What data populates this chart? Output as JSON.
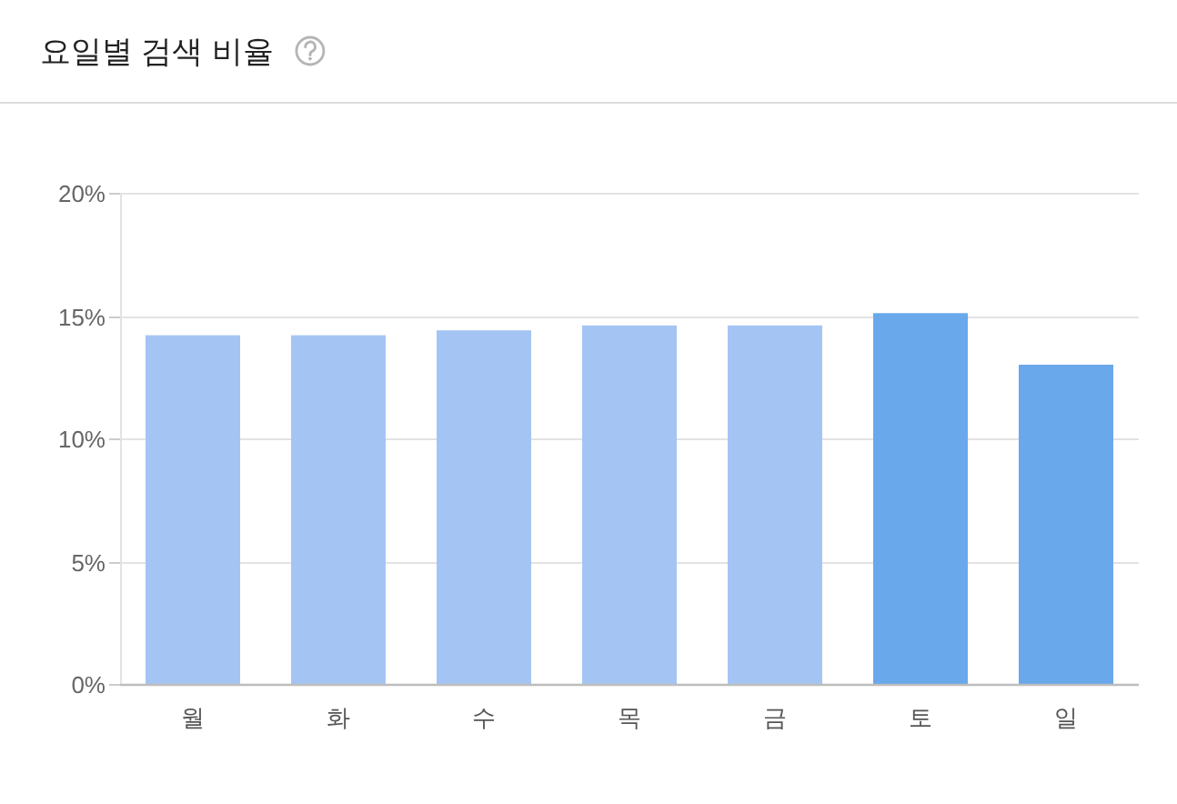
{
  "chart_data": {
    "type": "bar",
    "title": "요일별 검색 비율",
    "categories": [
      "월",
      "화",
      "수",
      "목",
      "금",
      "토",
      "일"
    ],
    "values": [
      14.2,
      14.2,
      14.4,
      14.6,
      14.6,
      15.1,
      13.0
    ],
    "colors": [
      "#a4c5f4",
      "#a4c5f4",
      "#a4c5f4",
      "#a4c5f4",
      "#a4c5f4",
      "#6aa8ec",
      "#6aa8ec"
    ],
    "ylim": [
      0,
      20
    ],
    "yticks": [
      {
        "value": 0,
        "label": "0%"
      },
      {
        "value": 5,
        "label": "5%"
      },
      {
        "value": 10,
        "label": "10%"
      },
      {
        "value": 15,
        "label": "15%"
      },
      {
        "value": 20,
        "label": "20%"
      }
    ],
    "grid": "y"
  }
}
